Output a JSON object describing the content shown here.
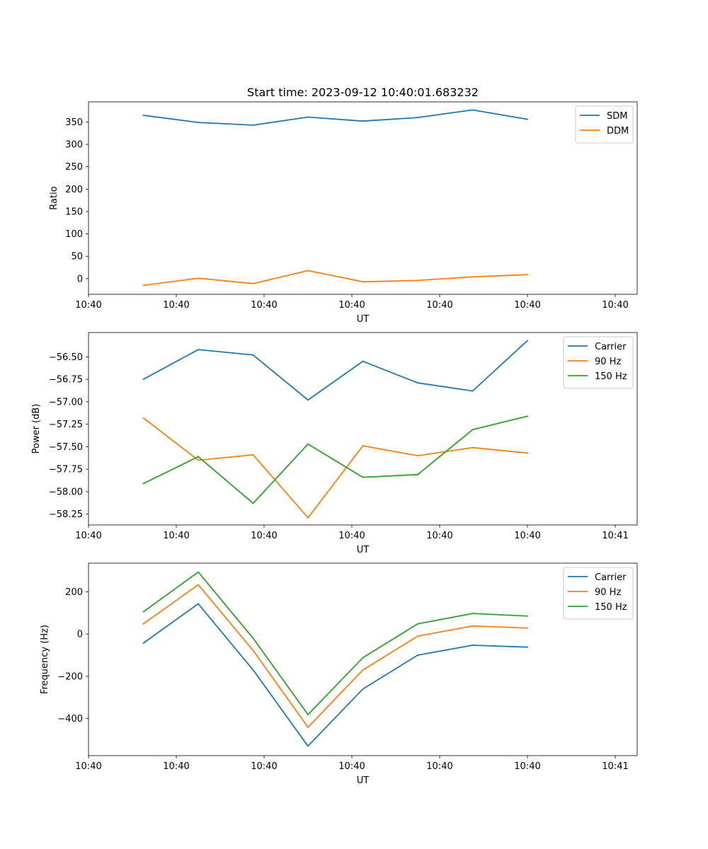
{
  "figure_title": "Start time: 2023-09-12 10:40:01.683232",
  "chart_data": [
    {
      "type": "line",
      "title": "Start time: 2023-09-12 10:40:01.683232",
      "xlabel": "UT",
      "ylabel": "Ratio",
      "x": [
        1,
        2,
        3,
        4,
        5,
        6,
        7,
        8
      ],
      "xlim": [
        0,
        10
      ],
      "xticks": [
        0,
        1.6,
        3.2,
        4.8,
        6.4,
        8,
        9.6
      ],
      "xtick_labels": [
        "10:40",
        "10:40",
        "10:40",
        "10:40",
        "10:40",
        "10:40",
        "10:40"
      ],
      "ylim": [
        -35,
        395
      ],
      "yticks": [
        0,
        50,
        100,
        150,
        200,
        250,
        300,
        350
      ],
      "ytick_labels": [
        "0",
        "50",
        "100",
        "150",
        "200",
        "250",
        "300",
        "350"
      ],
      "legend_position": "top-right",
      "series": [
        {
          "name": "SDM",
          "color": "#1f77b4",
          "values": [
            365,
            349,
            343,
            361,
            352,
            360,
            377,
            356
          ]
        },
        {
          "name": "DDM",
          "color": "#ff7f0e",
          "values": [
            -15,
            1,
            -11,
            18,
            -7,
            -4,
            4,
            9
          ]
        }
      ]
    },
    {
      "type": "line",
      "title": "",
      "xlabel": "UT",
      "ylabel": "Power (dB)",
      "x": [
        1,
        2,
        3,
        4,
        5,
        6,
        7,
        8
      ],
      "xlim": [
        0,
        10
      ],
      "xticks": [
        0,
        1.6,
        3.2,
        4.8,
        6.4,
        8,
        9.6
      ],
      "xtick_labels": [
        "10:40",
        "10:40",
        "10:40",
        "10:40",
        "10:40",
        "10:40",
        "10:41"
      ],
      "ylim": [
        -58.37,
        -56.23
      ],
      "yticks": [
        -58.25,
        -58.0,
        -57.75,
        -57.5,
        -57.25,
        -57.0,
        -56.75,
        -56.5
      ],
      "ytick_labels": [
        "−58.25",
        "−58.00",
        "−57.75",
        "−57.50",
        "−57.25",
        "−57.00",
        "−56.75",
        "−56.50"
      ],
      "legend_position": "top-right",
      "series": [
        {
          "name": "Carrier",
          "color": "#1f77b4",
          "values": [
            -56.75,
            -56.42,
            -56.48,
            -56.98,
            -56.55,
            -56.79,
            -56.88,
            -56.32
          ]
        },
        {
          "name": "90 Hz",
          "color": "#ff7f0e",
          "values": [
            -57.18,
            -57.65,
            -57.59,
            -58.29,
            -57.49,
            -57.6,
            -57.51,
            -57.57
          ]
        },
        {
          "name": "150 Hz",
          "color": "#2ca02c",
          "values": [
            -57.91,
            -57.61,
            -58.13,
            -57.47,
            -57.84,
            -57.81,
            -57.31,
            -57.16
          ]
        }
      ]
    },
    {
      "type": "line",
      "title": "",
      "xlabel": "UT",
      "ylabel": "Frequency (Hz)",
      "x": [
        1,
        2,
        3,
        4,
        5,
        6,
        7,
        8
      ],
      "xlim": [
        0,
        10
      ],
      "xticks": [
        0,
        1.6,
        3.2,
        4.8,
        6.4,
        8,
        9.6
      ],
      "xtick_labels": [
        "10:40",
        "10:40",
        "10:40",
        "10:40",
        "10:40",
        "10:40",
        "10:41"
      ],
      "ylim": [
        -575,
        335
      ],
      "yticks": [
        -400,
        -200,
        0,
        200
      ],
      "ytick_labels": [
        "−400",
        "−200",
        "0",
        "200"
      ],
      "legend_position": "top-right",
      "series": [
        {
          "name": "Carrier",
          "color": "#1f77b4",
          "values": [
            -43,
            143,
            -170,
            -530,
            -260,
            -100,
            -53,
            -62
          ]
        },
        {
          "name": "90 Hz",
          "color": "#ff7f0e",
          "values": [
            48,
            233,
            -78,
            -441,
            -170,
            -10,
            38,
            28
          ]
        },
        {
          "name": "150 Hz",
          "color": "#2ca02c",
          "values": [
            105,
            293,
            -20,
            -381,
            -112,
            48,
            97,
            85
          ]
        }
      ]
    }
  ]
}
